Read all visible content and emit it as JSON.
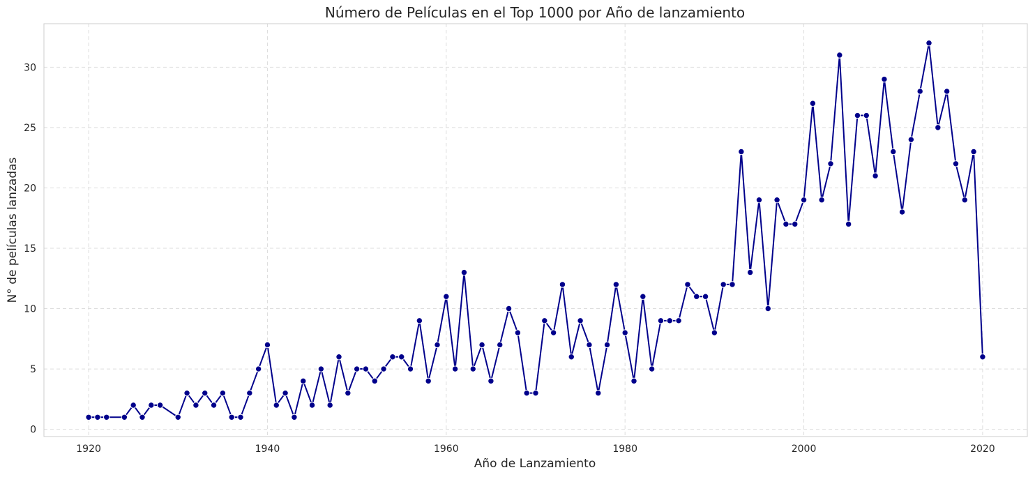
{
  "chart_data": {
    "type": "line",
    "title": "Número de Películas en el Top 1000 por Año de lanzamiento",
    "xlabel": "Año de Lanzamiento",
    "ylabel": "N° de películas lanzadas",
    "xlim": [
      1915,
      2025
    ],
    "ylim": [
      -0.6,
      33.6
    ],
    "xticks": [
      1920,
      1940,
      1960,
      1980,
      2000,
      2020
    ],
    "yticks": [
      0,
      5,
      10,
      15,
      20,
      25,
      30
    ],
    "grid": true,
    "line_color": "#00008b",
    "marker": "circle",
    "series": [
      {
        "x": [
          1920,
          1921,
          1922,
          1924,
          1925,
          1926,
          1927,
          1928,
          1930,
          1931,
          1932,
          1933,
          1934,
          1935,
          1936,
          1937,
          1938,
          1939,
          1940,
          1941,
          1942,
          1943,
          1944,
          1945,
          1946,
          1947,
          1948,
          1949,
          1950,
          1951,
          1952,
          1953,
          1954,
          1955,
          1956,
          1957,
          1958,
          1959,
          1960,
          1961,
          1962,
          1963,
          1964,
          1965,
          1966,
          1967,
          1968,
          1969,
          1970,
          1971,
          1972,
          1973,
          1974,
          1975,
          1976,
          1977,
          1978,
          1979,
          1980,
          1981,
          1982,
          1983,
          1984,
          1985,
          1986,
          1987,
          1988,
          1989,
          1990,
          1991,
          1992,
          1993,
          1994,
          1995,
          1996,
          1997,
          1998,
          1999,
          2000,
          2001,
          2002,
          2003,
          2004,
          2005,
          2006,
          2007,
          2008,
          2009,
          2010,
          2011,
          2012,
          2013,
          2014,
          2015,
          2016,
          2017,
          2018,
          2019,
          2020
        ],
        "values": [
          1,
          1,
          1,
          1,
          2,
          1,
          2,
          2,
          1,
          3,
          2,
          3,
          2,
          3,
          1,
          1,
          3,
          5,
          7,
          2,
          3,
          1,
          4,
          2,
          5,
          2,
          6,
          3,
          5,
          5,
          4,
          5,
          6,
          6,
          5,
          9,
          4,
          7,
          11,
          5,
          13,
          5,
          7,
          4,
          7,
          10,
          8,
          3,
          3,
          9,
          8,
          12,
          6,
          9,
          7,
          3,
          7,
          12,
          8,
          4,
          11,
          5,
          9,
          9,
          9,
          12,
          11,
          11,
          8,
          12,
          12,
          23,
          13,
          19,
          10,
          19,
          17,
          17,
          19,
          27,
          19,
          22,
          31,
          17,
          26,
          26,
          21,
          29,
          23,
          18,
          24,
          28,
          32,
          25,
          28,
          22,
          19,
          23,
          6
        ]
      }
    ]
  }
}
